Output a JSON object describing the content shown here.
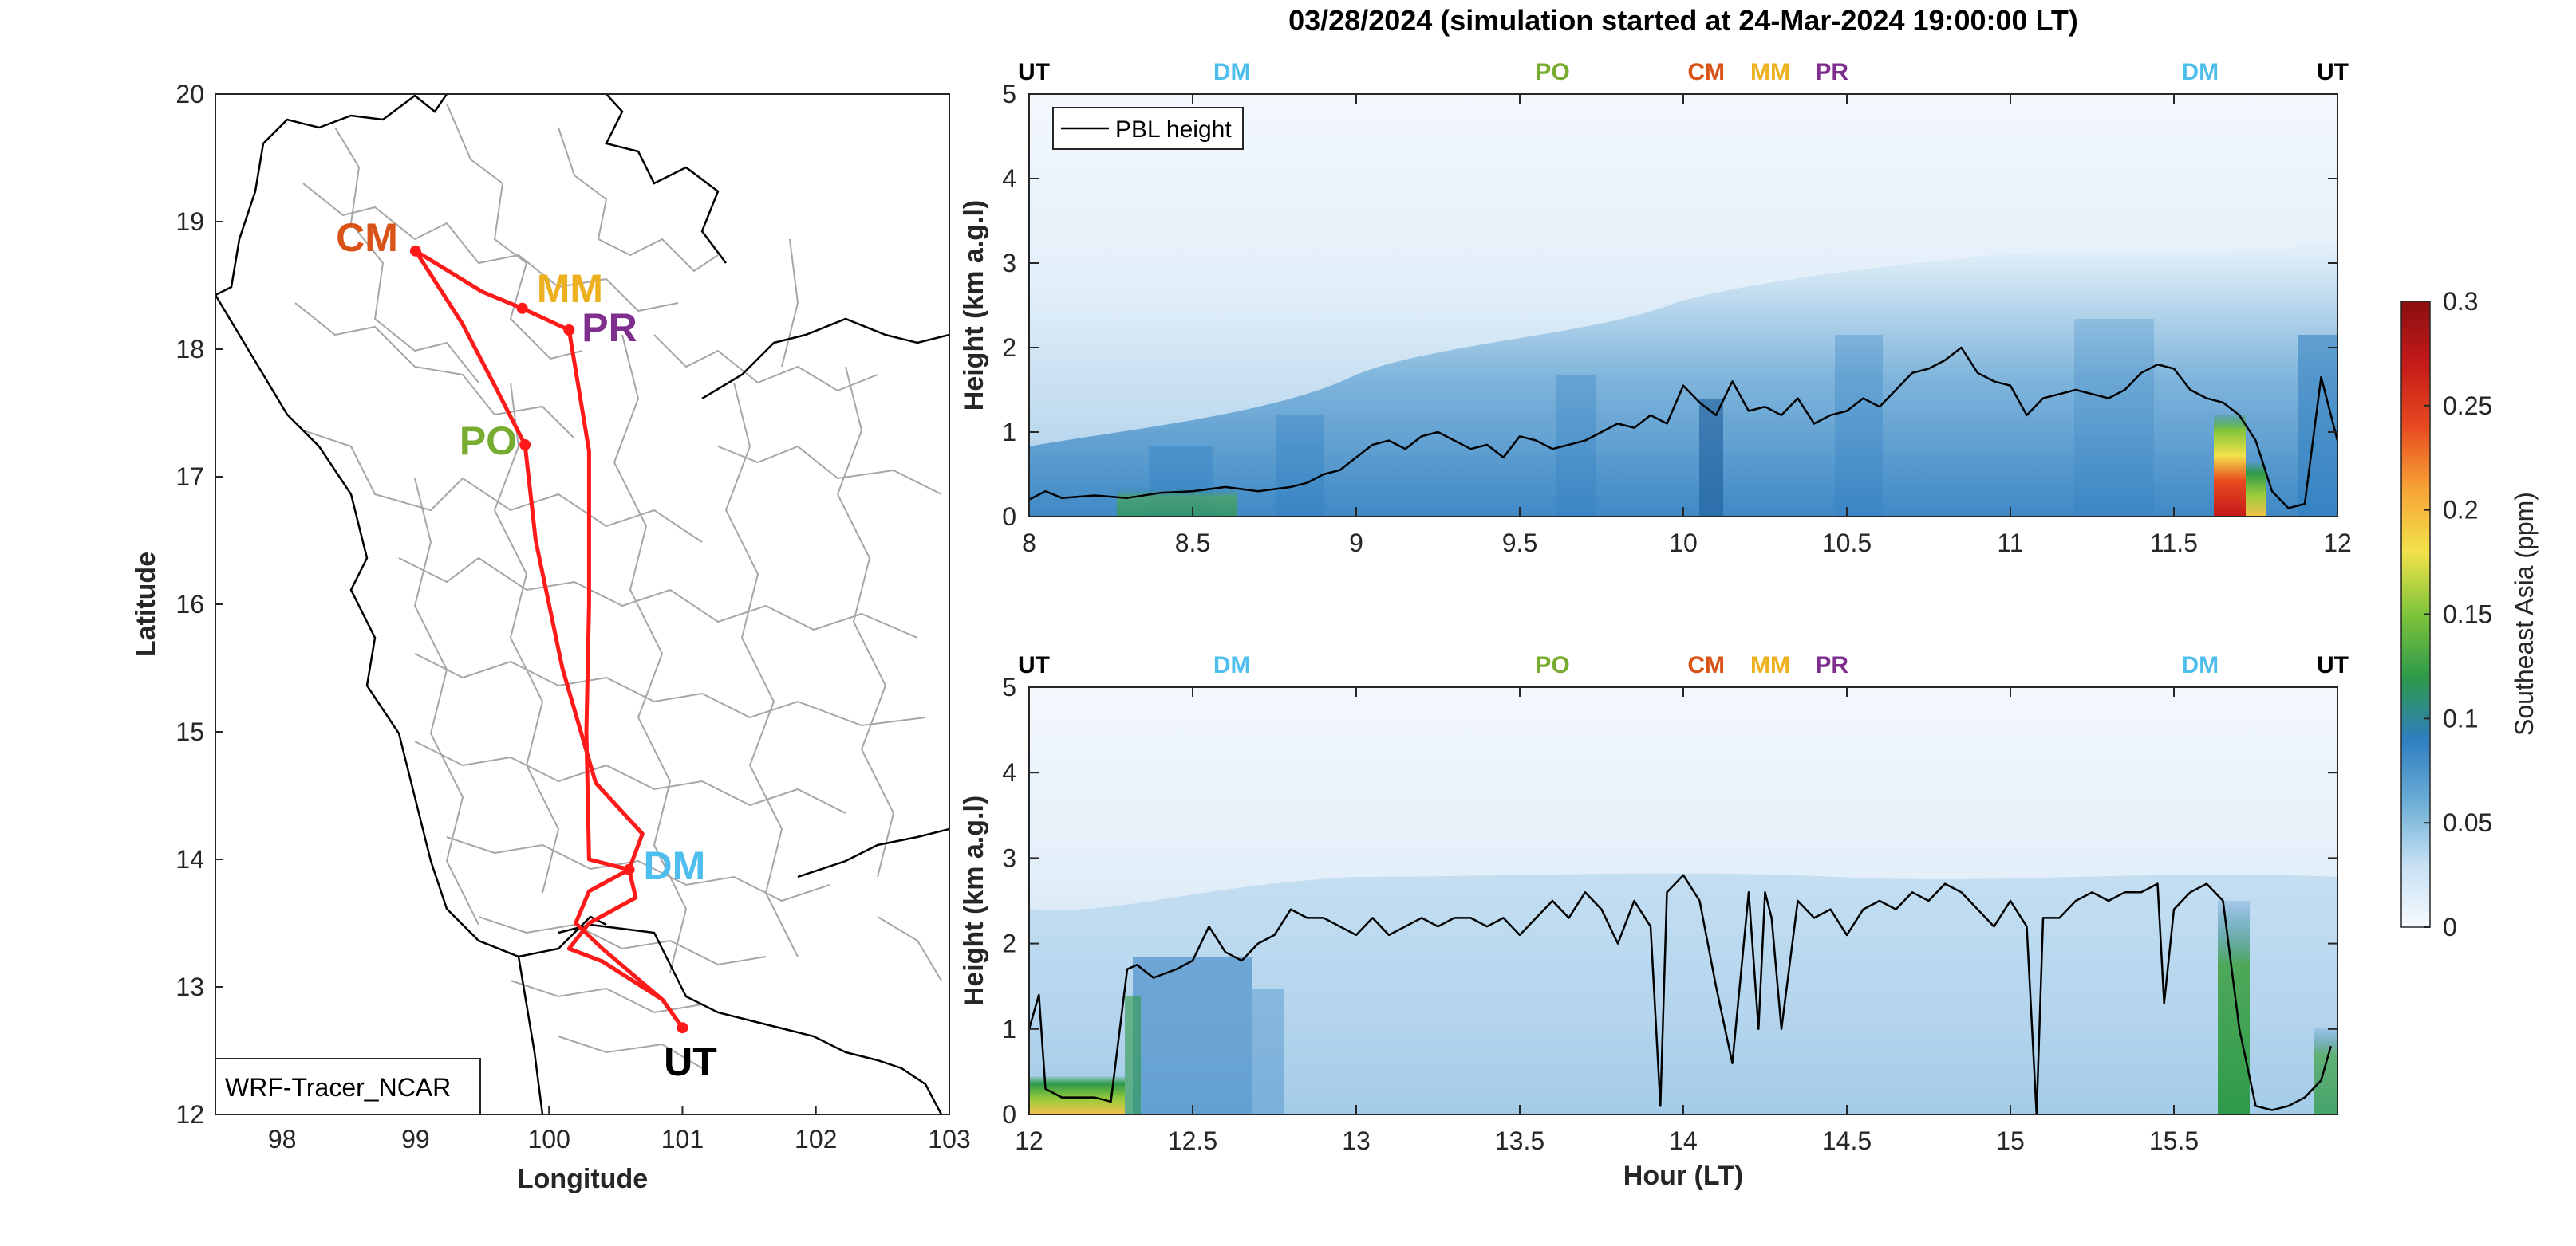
{
  "title": "03/28/2024 (simulation started at 24-Mar-2024 19:00:00 LT)",
  "colors": {
    "CM": "#D95319",
    "MM": "#EDB120",
    "PR": "#7E2F8E",
    "PO": "#77AC30",
    "DM": "#4DBEEE",
    "UT": "#000000",
    "track": "#FF1A1A",
    "border": "#A6A6A6"
  },
  "map": {
    "xlabel": "Longitude",
    "ylabel": "Latitude",
    "xlim": [
      97.5,
      103
    ],
    "ylim": [
      12,
      20
    ],
    "xticks": [
      "98",
      "99",
      "100",
      "101",
      "102",
      "103"
    ],
    "yticks": [
      "12",
      "13",
      "14",
      "15",
      "16",
      "17",
      "18",
      "19",
      "20"
    ],
    "model_label": "WRF-Tracer_NCAR",
    "sites": [
      {
        "code": "CM",
        "lon": 99.0,
        "lat": 18.77
      },
      {
        "code": "MM",
        "lon": 99.8,
        "lat": 18.32
      },
      {
        "code": "PR",
        "lon": 100.15,
        "lat": 18.15
      },
      {
        "code": "PO",
        "lon": 99.82,
        "lat": 17.25
      },
      {
        "code": "DM",
        "lon": 100.6,
        "lat": 13.92
      },
      {
        "code": "UT",
        "lon": 101.0,
        "lat": 12.68
      }
    ],
    "track": [
      [
        101.0,
        12.68
      ],
      [
        100.85,
        12.9
      ],
      [
        100.4,
        13.3
      ],
      [
        100.2,
        13.5
      ],
      [
        100.3,
        13.75
      ],
      [
        100.6,
        13.92
      ],
      [
        100.7,
        14.2
      ],
      [
        100.35,
        14.6
      ],
      [
        100.1,
        15.5
      ],
      [
        99.9,
        16.5
      ],
      [
        99.82,
        17.25
      ],
      [
        99.6,
        17.7
      ],
      [
        99.35,
        18.2
      ],
      [
        99.0,
        18.77
      ],
      [
        99.5,
        18.45
      ],
      [
        99.8,
        18.32
      ],
      [
        100.15,
        18.15
      ],
      [
        100.3,
        17.2
      ],
      [
        100.3,
        16.0
      ],
      [
        100.28,
        15.0
      ],
      [
        100.3,
        14.0
      ],
      [
        100.6,
        13.92
      ],
      [
        100.65,
        13.7
      ],
      [
        100.3,
        13.5
      ],
      [
        100.15,
        13.3
      ],
      [
        100.4,
        13.2
      ],
      [
        100.85,
        12.9
      ],
      [
        101.0,
        12.68
      ]
    ]
  },
  "chart_data": [
    {
      "type": "heatmap",
      "title": "",
      "xlabel": "",
      "ylabel": "Height (km a.g.l)",
      "xlim": [
        8,
        12
      ],
      "ylim": [
        0,
        5
      ],
      "xticks": [
        "8",
        "8.5",
        "9",
        "9.5",
        "10",
        "10.5",
        "11",
        "11.5",
        "12"
      ],
      "yticks": [
        "0",
        "1",
        "2",
        "3",
        "4",
        "5"
      ],
      "legend": {
        "label": "PBL height",
        "position": "top-left"
      },
      "site_markers": [
        {
          "code": "UT",
          "hour": 8.0
        },
        {
          "code": "DM",
          "hour": 8.62
        },
        {
          "code": "PO",
          "hour": 9.6
        },
        {
          "code": "CM",
          "hour": 10.07
        },
        {
          "code": "MM",
          "hour": 10.3
        },
        {
          "code": "PR",
          "hour": 10.42
        },
        {
          "code": "DM",
          "hour": 11.58
        },
        {
          "code": "UT",
          "hour": 12.0
        }
      ],
      "pbl_height": {
        "hour": [
          8.0,
          8.05,
          8.1,
          8.2,
          8.3,
          8.4,
          8.5,
          8.6,
          8.7,
          8.8,
          8.85,
          8.9,
          8.95,
          9.0,
          9.05,
          9.1,
          9.15,
          9.2,
          9.25,
          9.3,
          9.35,
          9.4,
          9.45,
          9.5,
          9.55,
          9.6,
          9.65,
          9.7,
          9.75,
          9.8,
          9.85,
          9.9,
          9.95,
          10.0,
          10.05,
          10.1,
          10.15,
          10.2,
          10.25,
          10.3,
          10.35,
          10.4,
          10.45,
          10.5,
          10.55,
          10.6,
          10.65,
          10.7,
          10.75,
          10.8,
          10.85,
          10.9,
          10.95,
          11.0,
          11.05,
          11.1,
          11.15,
          11.2,
          11.25,
          11.3,
          11.35,
          11.4,
          11.45,
          11.5,
          11.55,
          11.6,
          11.65,
          11.7,
          11.75,
          11.8,
          11.85,
          11.9,
          11.95,
          12.0
        ],
        "km": [
          0.2,
          0.3,
          0.22,
          0.25,
          0.22,
          0.28,
          0.3,
          0.35,
          0.3,
          0.35,
          0.4,
          0.5,
          0.55,
          0.7,
          0.85,
          0.9,
          0.8,
          0.95,
          1.0,
          0.9,
          0.8,
          0.85,
          0.7,
          0.95,
          0.9,
          0.8,
          0.85,
          0.9,
          1.0,
          1.1,
          1.05,
          1.2,
          1.1,
          1.55,
          1.35,
          1.2,
          1.6,
          1.25,
          1.3,
          1.2,
          1.4,
          1.1,
          1.2,
          1.25,
          1.4,
          1.3,
          1.5,
          1.7,
          1.75,
          1.85,
          2.0,
          1.7,
          1.6,
          1.55,
          1.2,
          1.4,
          1.45,
          1.5,
          1.45,
          1.4,
          1.5,
          1.7,
          1.8,
          1.75,
          1.5,
          1.4,
          1.35,
          1.2,
          0.9,
          0.3,
          0.1,
          0.15,
          1.65,
          0.9
        ]
      }
    },
    {
      "type": "heatmap",
      "title": "",
      "xlabel": "Hour (LT)",
      "ylabel": "Height (km a.g.l)",
      "xlim": [
        12,
        16
      ],
      "ylim": [
        0,
        5
      ],
      "xticks": [
        "12",
        "12.5",
        "13",
        "13.5",
        "14",
        "14.5",
        "15",
        "15.5"
      ],
      "yticks": [
        "0",
        "1",
        "2",
        "3",
        "4",
        "5"
      ],
      "site_markers": [
        {
          "code": "UT",
          "hour": 12.0
        },
        {
          "code": "DM",
          "hour": 12.62
        },
        {
          "code": "PO",
          "hour": 13.6
        },
        {
          "code": "CM",
          "hour": 14.07
        },
        {
          "code": "MM",
          "hour": 14.3
        },
        {
          "code": "PR",
          "hour": 14.42
        },
        {
          "code": "DM",
          "hour": 15.58
        },
        {
          "code": "UT",
          "hour": 16.0
        }
      ],
      "pbl_height": {
        "hour": [
          12.0,
          12.03,
          12.05,
          12.1,
          12.15,
          12.2,
          12.25,
          12.3,
          12.33,
          12.38,
          12.45,
          12.5,
          12.55,
          12.6,
          12.65,
          12.7,
          12.75,
          12.8,
          12.85,
          12.9,
          12.95,
          13.0,
          13.05,
          13.1,
          13.15,
          13.2,
          13.25,
          13.3,
          13.35,
          13.4,
          13.45,
          13.5,
          13.55,
          13.6,
          13.65,
          13.7,
          13.75,
          13.8,
          13.85,
          13.9,
          13.93,
          13.95,
          14.0,
          14.05,
          14.1,
          14.15,
          14.2,
          14.23,
          14.25,
          14.27,
          14.3,
          14.35,
          14.4,
          14.45,
          14.5,
          14.55,
          14.6,
          14.65,
          14.7,
          14.75,
          14.8,
          14.85,
          14.9,
          14.95,
          15.0,
          15.05,
          15.08,
          15.1,
          15.15,
          15.2,
          15.25,
          15.3,
          15.35,
          15.4,
          15.45,
          15.47,
          15.5,
          15.55,
          15.6,
          15.65,
          15.7,
          15.75,
          15.8,
          15.85,
          15.9,
          15.95,
          15.98
        ],
        "km": [
          1.0,
          1.4,
          0.3,
          0.2,
          0.2,
          0.2,
          0.15,
          1.7,
          1.75,
          1.6,
          1.7,
          1.8,
          2.2,
          1.9,
          1.8,
          2.0,
          2.1,
          2.4,
          2.3,
          2.3,
          2.2,
          2.1,
          2.3,
          2.1,
          2.2,
          2.3,
          2.2,
          2.3,
          2.3,
          2.2,
          2.3,
          2.1,
          2.3,
          2.5,
          2.3,
          2.6,
          2.4,
          2.0,
          2.5,
          2.2,
          0.1,
          2.6,
          2.8,
          2.5,
          1.5,
          0.6,
          2.6,
          1.0,
          2.6,
          2.3,
          1.0,
          2.5,
          2.3,
          2.4,
          2.1,
          2.4,
          2.5,
          2.4,
          2.6,
          2.5,
          2.7,
          2.6,
          2.4,
          2.2,
          2.5,
          2.2,
          0.0,
          2.3,
          2.3,
          2.5,
          2.6,
          2.5,
          2.6,
          2.6,
          2.7,
          1.3,
          2.4,
          2.6,
          2.7,
          2.5,
          1.0,
          0.1,
          0.05,
          0.1,
          0.2,
          0.4,
          0.8
        ]
      }
    }
  ],
  "colorbar": {
    "label": "Southeast Asia (ppm)",
    "ticks": [
      "0",
      "0.05",
      "0.1",
      "0.15",
      "0.2",
      "0.25",
      "0.3"
    ],
    "range": [
      0,
      0.3
    ],
    "colormap": [
      "#F7FBFF",
      "#C6E0F2",
      "#6BAED6",
      "#2F7EC0",
      "#2E9A4A",
      "#7FC43A",
      "#F2E24A",
      "#F7A437",
      "#E84A1F",
      "#C41A1A",
      "#8B0F0F"
    ]
  }
}
